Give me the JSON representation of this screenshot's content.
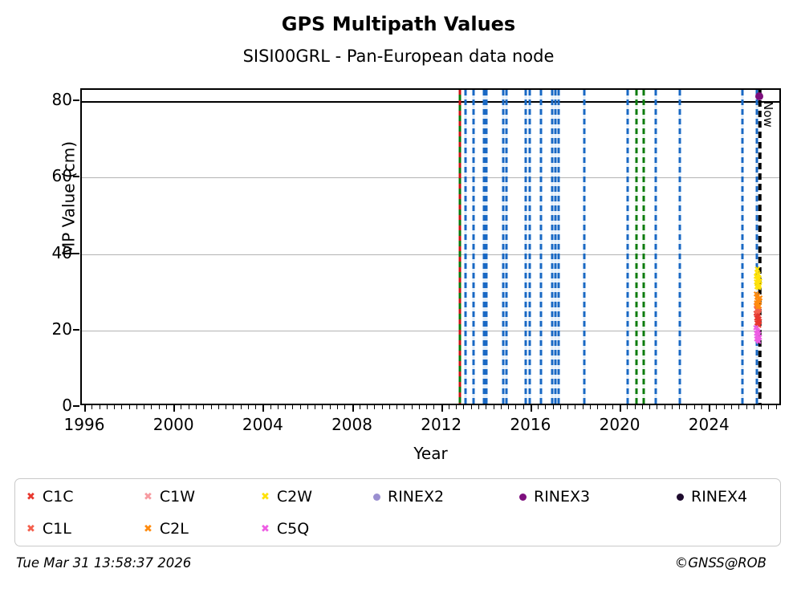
{
  "header": {
    "title": "GPS Multipath Values",
    "subtitle": "SISI00GRL - Pan-European data node"
  },
  "footer": {
    "timestamp": "Tue Mar 31 13:58:37 2026",
    "credit": "©GNSS@ROB"
  },
  "legend": {
    "entries": [
      {
        "label": "C1C",
        "marker": "x",
        "color": "#e8382f"
      },
      {
        "label": "C1W",
        "marker": "x",
        "color": "#f79aa0"
      },
      {
        "label": "C2W",
        "marker": "x",
        "color": "#ffe20a"
      },
      {
        "label": "RINEX2",
        "marker": "dot",
        "color": "#9a8fd0"
      },
      {
        "label": "RINEX3",
        "marker": "dot",
        "color": "#7d0f7d"
      },
      {
        "label": "RINEX4",
        "marker": "dot",
        "color": "#1e0b2e"
      },
      {
        "label": "C1L",
        "marker": "x",
        "color": "#f4604d"
      },
      {
        "label": "C2L",
        "marker": "x",
        "color": "#ff8b0f"
      },
      {
        "label": "C5Q",
        "marker": "x",
        "color": "#ee5de4"
      }
    ]
  },
  "chart_data": {
    "type": "scatter",
    "title": "GPS Multipath Values",
    "subtitle": "SISI00GRL - Pan-European data node",
    "xlabel": "Year",
    "ylabel": "MP Value (cm)",
    "xlim": [
      1995.82,
      2027.23
    ],
    "ylim": [
      0,
      83
    ],
    "xticks": [
      1996,
      2000,
      2004,
      2008,
      2012,
      2016,
      2020,
      2024
    ],
    "yticks": [
      0,
      20,
      40,
      60,
      80
    ],
    "grid": "horizontal gray lines at 20, 40, 60; solid black line at 80",
    "hline": {
      "y": 80,
      "color": "#000000"
    },
    "now_line": {
      "year": 2026.22,
      "label": "Now",
      "color": "#000000",
      "style": "thick dashed"
    },
    "event_lines": {
      "red_green_dashed": [
        2012.77
      ],
      "blue_dashed": [
        2013.02,
        2013.38,
        2013.85,
        2013.96,
        2014.72,
        2014.84,
        2015.7,
        2015.9,
        2016.4,
        2016.9,
        2017.05,
        2017.2,
        2018.35,
        2020.29,
        2021.55,
        2022.63,
        2025.43,
        2026.08
      ],
      "green_dashed": [
        2020.68,
        2021.0
      ]
    },
    "line_colors": {
      "blue": "#1868c4",
      "green": "#0c7c0c",
      "red": "#cc1111",
      "now": "#000000",
      "grid": "#b3b3b3"
    },
    "series": [
      {
        "name": "C1C",
        "marker": "x",
        "color": "#e8382f",
        "points": [
          [
            2026.04,
            24.2
          ],
          [
            2026.1,
            23.8
          ],
          [
            2026.15,
            23.4
          ],
          [
            2026.07,
            23.0
          ],
          [
            2026.18,
            22.7
          ],
          [
            2026.11,
            22.3
          ],
          [
            2026.2,
            22.0
          ],
          [
            2026.08,
            21.7
          ],
          [
            2026.14,
            21.4
          ],
          [
            2026.17,
            21.1
          ]
        ]
      },
      {
        "name": "C1W",
        "marker": "x",
        "color": "#f79aa0",
        "points": [
          [
            2026.04,
            26.3
          ],
          [
            2026.1,
            25.8
          ],
          [
            2026.15,
            25.4
          ],
          [
            2026.08,
            25.1
          ],
          [
            2026.13,
            24.9
          ]
        ]
      },
      {
        "name": "C2W",
        "marker": "x",
        "color": "#ffe20a",
        "points": [
          [
            2026.1,
            35.7
          ],
          [
            2026.08,
            34.9
          ],
          [
            2026.14,
            34.4
          ],
          [
            2026.05,
            33.8
          ],
          [
            2026.18,
            33.4
          ],
          [
            2026.1,
            33.0
          ],
          [
            2026.21,
            32.6
          ],
          [
            2026.06,
            32.3
          ],
          [
            2026.15,
            32.0
          ],
          [
            2026.11,
            31.7
          ],
          [
            2026.19,
            31.4
          ],
          [
            2026.08,
            31.1
          ],
          [
            2026.16,
            30.9
          ],
          [
            2026.13,
            33.6
          ]
        ]
      },
      {
        "name": "RINEX2",
        "marker": "dot",
        "color": "#9a8fd0",
        "points": []
      },
      {
        "name": "RINEX3",
        "marker": "dot",
        "color": "#7d0f7d",
        "points": [
          [
            2026.19,
            81.3
          ]
        ]
      },
      {
        "name": "RINEX4",
        "marker": "dot",
        "color": "#1e0b2e",
        "points": []
      },
      {
        "name": "C1L",
        "marker": "x",
        "color": "#f4604d",
        "points": [
          [
            2026.06,
            26.0
          ],
          [
            2026.12,
            25.5
          ],
          [
            2026.09,
            25.0
          ],
          [
            2026.16,
            24.7
          ],
          [
            2026.11,
            24.5
          ],
          [
            2026.19,
            25.2
          ]
        ]
      },
      {
        "name": "C2L",
        "marker": "x",
        "color": "#ff8b0f",
        "points": [
          [
            2026.05,
            29.3
          ],
          [
            2026.12,
            28.8
          ],
          [
            2026.08,
            28.4
          ],
          [
            2026.17,
            28.0
          ],
          [
            2026.1,
            27.6
          ],
          [
            2026.2,
            27.3
          ],
          [
            2026.06,
            27.0
          ],
          [
            2026.14,
            26.7
          ],
          [
            2026.09,
            26.4
          ],
          [
            2026.18,
            26.1
          ],
          [
            2026.12,
            25.9
          ],
          [
            2026.22,
            28.2
          ]
        ]
      },
      {
        "name": "C5Q",
        "marker": "x",
        "color": "#ee5de4",
        "points": [
          [
            2026.03,
            20.3
          ],
          [
            2026.09,
            19.8
          ],
          [
            2026.14,
            19.4
          ],
          [
            2026.06,
            19.0
          ],
          [
            2026.17,
            18.6
          ],
          [
            2026.1,
            18.2
          ],
          [
            2026.2,
            17.9
          ],
          [
            2026.07,
            17.5
          ],
          [
            2026.13,
            17.2
          ],
          [
            2026.16,
            16.9
          ]
        ]
      }
    ]
  }
}
